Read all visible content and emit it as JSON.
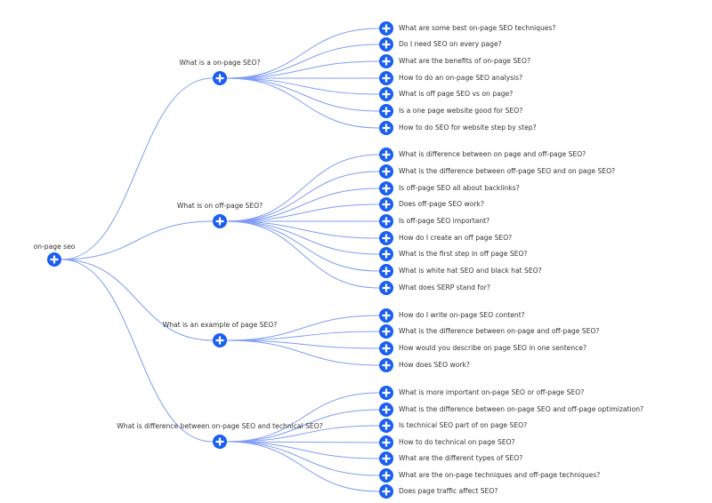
{
  "colors": {
    "node": "#1a5ff2",
    "edge": "#7f9df5",
    "text": "#333333"
  },
  "node_icon": "plus-circle-icon",
  "root": {
    "label": "on-page seo",
    "children": [
      {
        "label": "What is a on-page SEO?",
        "children": [
          "What are some best on-page SEO techniques?",
          "Do I need SEO on every page?",
          "What are the benefits of on-page SEO?",
          "How to do an on-page SEO analysis?",
          "What is off page SEO vs on page?",
          "Is a one page website good for SEO?",
          "How to do SEO for website step by step?"
        ]
      },
      {
        "label": "What is on off-page SEO?",
        "children": [
          "What is difference between on page and off-page SEO?",
          "What is the difference between off-page SEO and on page SEO?",
          "Is off-page SEO all about backlinks?",
          "Does off-page SEO work?",
          "Is off-page SEO important?",
          "How do I create an off page SEO?",
          "What is the first step in off page SEO?",
          "What is white hat SEO and black hat SEO?",
          "What does SERP stand for?"
        ]
      },
      {
        "label": "What is an example of page SEO?",
        "children": [
          "How do I write on-page SEO content?",
          "What is the difference between on-page and off-page SEO?",
          "How would you describe on page SEO in one sentence?",
          "How does SEO work?"
        ]
      },
      {
        "label": "What is difference between on-page SEO and technical SEO?",
        "children": [
          "What is more important on-page SEO or off-page SEO?",
          "What is the difference between on-page SEO and off-page optimization?",
          "Is technical SEO part of on page SEO?",
          "How to do technical on page SEO?",
          "What are the different types of SEO?",
          "What are the on-page techniques and off-page techniques?",
          "Does page traffic affect SEO?"
        ]
      }
    ]
  }
}
